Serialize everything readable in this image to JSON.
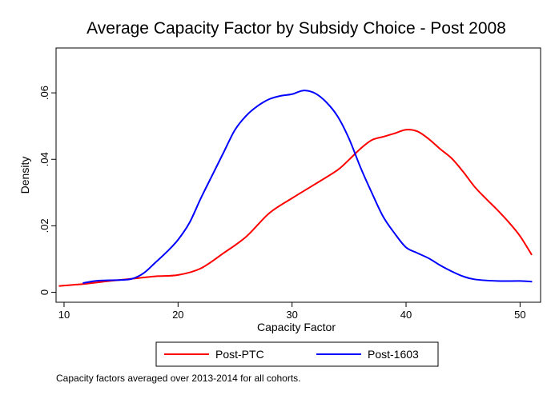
{
  "chart_data": {
    "type": "line",
    "title": "Average Capacity Factor by Subsidy Choice - Post 2008",
    "xlabel": "Capacity Factor",
    "ylabel": "Density",
    "xlim": [
      9.3,
      51.8
    ],
    "ylim": [
      -0.003,
      0.0735
    ],
    "x_ticks": [
      10,
      20,
      30,
      40,
      50
    ],
    "x_tick_labels": [
      "10",
      "20",
      "30",
      "40",
      "50"
    ],
    "y_ticks": [
      0,
      0.02,
      0.04,
      0.06
    ],
    "y_tick_labels": [
      "0",
      ".02",
      ".04",
      ".06"
    ],
    "grid": false,
    "legend": {
      "placement": "bottom",
      "columns": 2
    },
    "series": [
      {
        "name": "Post-PTC",
        "color": "#ff0000",
        "points": [
          [
            9.6,
            0.0019
          ],
          [
            12,
            0.0026
          ],
          [
            14,
            0.0034
          ],
          [
            16,
            0.0041
          ],
          [
            18,
            0.0048
          ],
          [
            20,
            0.0052
          ],
          [
            22,
            0.0072
          ],
          [
            24,
            0.0118
          ],
          [
            26,
            0.0168
          ],
          [
            28,
            0.0238
          ],
          [
            30,
            0.0283
          ],
          [
            32,
            0.0325
          ],
          [
            34,
            0.0368
          ],
          [
            35,
            0.0399
          ],
          [
            36,
            0.0432
          ],
          [
            37,
            0.0458
          ],
          [
            38,
            0.0468
          ],
          [
            39,
            0.0478
          ],
          [
            40,
            0.0489
          ],
          [
            41,
            0.0484
          ],
          [
            42,
            0.0461
          ],
          [
            43,
            0.0431
          ],
          [
            44,
            0.0403
          ],
          [
            45,
            0.0363
          ],
          [
            46,
            0.0318
          ],
          [
            47,
            0.0282
          ],
          [
            48,
            0.0248
          ],
          [
            49,
            0.0211
          ],
          [
            50,
            0.0169
          ],
          [
            51,
            0.0114
          ]
        ]
      },
      {
        "name": "Post-1603",
        "color": "#0000ff",
        "points": [
          [
            11.7,
            0.0028
          ],
          [
            13,
            0.0035
          ],
          [
            15,
            0.0037
          ],
          [
            16,
            0.0041
          ],
          [
            17,
            0.0058
          ],
          [
            18,
            0.0089
          ],
          [
            19,
            0.0121
          ],
          [
            20,
            0.0158
          ],
          [
            21,
            0.0209
          ],
          [
            22,
            0.0283
          ],
          [
            23,
            0.0352
          ],
          [
            24,
            0.0421
          ],
          [
            25,
            0.0489
          ],
          [
            26,
            0.0532
          ],
          [
            27,
            0.0561
          ],
          [
            28,
            0.0581
          ],
          [
            29,
            0.0591
          ],
          [
            30,
            0.0596
          ],
          [
            31,
            0.0607
          ],
          [
            32,
            0.0599
          ],
          [
            33,
            0.0572
          ],
          [
            34,
            0.0529
          ],
          [
            35,
            0.0462
          ],
          [
            36,
            0.0376
          ],
          [
            37,
            0.0299
          ],
          [
            38,
            0.0227
          ],
          [
            39,
            0.0177
          ],
          [
            40,
            0.0135
          ],
          [
            41,
            0.0118
          ],
          [
            42,
            0.0102
          ],
          [
            43,
            0.0081
          ],
          [
            44,
            0.0063
          ],
          [
            45,
            0.0048
          ],
          [
            46,
            0.0039
          ],
          [
            48,
            0.0034
          ],
          [
            50,
            0.0034
          ],
          [
            51,
            0.0032
          ]
        ]
      }
    ],
    "note": "Capacity factors averaged over 2013-2014 for all cohorts."
  }
}
